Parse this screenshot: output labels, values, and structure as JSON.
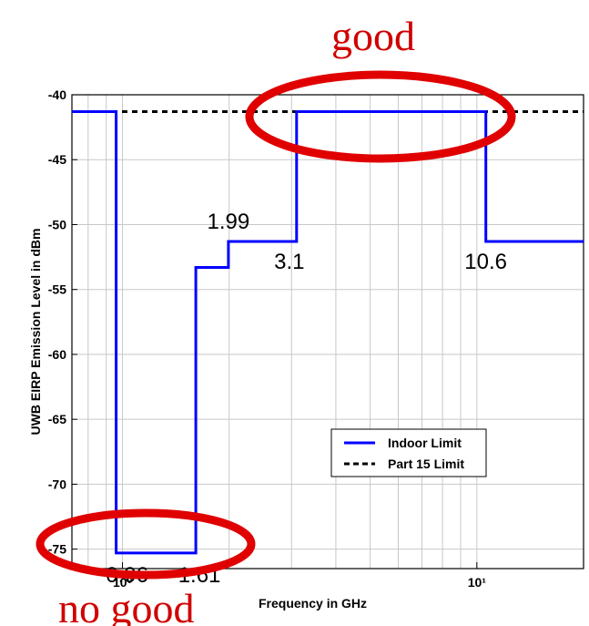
{
  "chart_data": {
    "type": "line",
    "title": "",
    "xlabel": "Frequency in GHz",
    "ylabel": "UWB EIRP Emission Level in dBm",
    "xscale": "log",
    "xlim": [
      0.72,
      20
    ],
    "ylim": [
      -76.5,
      -40
    ],
    "yticks": [
      -40,
      -45,
      -50,
      -55,
      -60,
      -65,
      -70,
      -75
    ],
    "ytick_labels": [
      "-40",
      "-45",
      "-50",
      "-55",
      "-60",
      "-65",
      "-70",
      "-75"
    ],
    "xticks": [
      1,
      10
    ],
    "xtick_labels": [
      "10⁰",
      "10¹"
    ],
    "grid": true,
    "legend": {
      "position": "lower-right"
    },
    "series": [
      {
        "name": "Indoor Limit",
        "style": "solid",
        "color": "#0000ff",
        "x": [
          0.72,
          0.96,
          0.96,
          1.61,
          1.61,
          1.99,
          1.99,
          3.1,
          3.1,
          10.6,
          10.6,
          20
        ],
        "y": [
          -41.3,
          -41.3,
          -75.3,
          -75.3,
          -53.3,
          -53.3,
          -51.3,
          -51.3,
          -41.3,
          -41.3,
          -51.3,
          -51.3
        ]
      },
      {
        "name": "Part 15 Limit",
        "style": "dashed",
        "color": "#000000",
        "x": [
          0.72,
          20
        ],
        "y": [
          -41.3,
          -41.3
        ]
      }
    ],
    "annotations": [
      {
        "text": "0.96",
        "x": 0.96,
        "y": -75.3
      },
      {
        "text": "1.61",
        "x": 1.61,
        "y": -75.3
      },
      {
        "text": "1.99",
        "x": 1.99,
        "y": -51.3
      },
      {
        "text": "3.1",
        "x": 3.1,
        "y": -51.3
      },
      {
        "text": "10.6",
        "x": 10.6,
        "y": -51.3
      }
    ],
    "callouts": [
      {
        "text": "good"
      },
      {
        "text": "no good"
      }
    ],
    "accent_color": "#d00000"
  }
}
